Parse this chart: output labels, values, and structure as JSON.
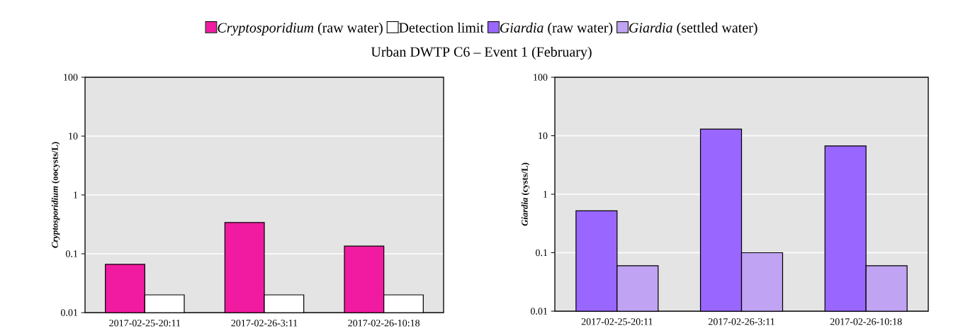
{
  "chart_data": [
    {
      "type": "bar",
      "title": "Urban DWTP C6 – Event 1 (February)",
      "ylabel": "*Cryptosporidium* (oocysts/L)",
      "categories": [
        "2017-02-25-20:11",
        "2017-02-26-3:11",
        "2017-02-26-10:18"
      ],
      "series": [
        {
          "name": "*Cryptosporidium* (raw water)",
          "color": "#f01ba0",
          "values": [
            0.066,
            0.34,
            0.135
          ]
        },
        {
          "name": "Detection limit",
          "color": "#ffffff",
          "values": [
            0.02,
            0.02,
            0.02
          ]
        }
      ],
      "ylim": [
        0.01,
        100
      ],
      "yticks": [
        0.01,
        0.1,
        1,
        10,
        100
      ],
      "log": true,
      "grid": "y",
      "legend": "top"
    },
    {
      "type": "bar",
      "ylabel": "*Giardia* (cysts/L)",
      "categories": [
        "2017-02-25-20:11",
        "2017-02-26-3:11",
        "2017-02-26-10:18"
      ],
      "series": [
        {
          "name": "*Giardia* (raw water)",
          "color": "#9966ff",
          "values": [
            0.52,
            13,
            6.7
          ]
        },
        {
          "name": "*Giardia* (settled water)",
          "color": "#c0a3f2",
          "values": [
            0.06,
            0.1,
            0.06
          ]
        }
      ],
      "ylim": [
        0.01,
        100
      ],
      "yticks": [
        0.01,
        0.1,
        1,
        10,
        100
      ],
      "log": true,
      "grid": "y",
      "legend": "top"
    }
  ]
}
